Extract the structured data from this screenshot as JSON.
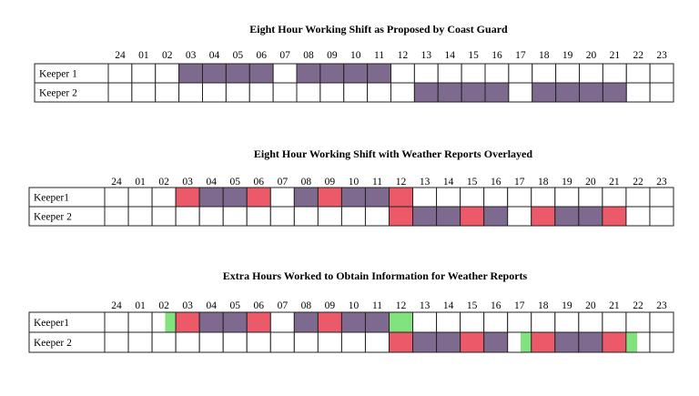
{
  "chart_data": [
    {
      "type": "table",
      "title": "Eight Hour Working Shift as Proposed by Coast Guard",
      "hours": [
        "24",
        "01",
        "02",
        "03",
        "04",
        "05",
        "06",
        "07",
        "08",
        "09",
        "10",
        "11",
        "12",
        "13",
        "14",
        "15",
        "16",
        "17",
        "18",
        "19",
        "20",
        "21",
        "22",
        "23"
      ],
      "rows": [
        {
          "label": "Keeper 1",
          "cells": [
            "",
            "",
            "",
            "shift",
            "shift",
            "shift",
            "shift",
            "",
            "shift",
            "shift",
            "shift",
            "shift",
            "",
            "",
            "",
            "",
            "",
            "",
            "",
            "",
            "",
            "",
            "",
            ""
          ]
        },
        {
          "label": "Keeper 2",
          "cells": [
            "",
            "",
            "",
            "",
            "",
            "",
            "",
            "",
            "",
            "",
            "",
            "",
            "",
            "shift",
            "shift",
            "shift",
            "shift",
            "",
            "shift",
            "shift",
            "shift",
            "shift",
            "",
            ""
          ]
        }
      ]
    },
    {
      "type": "table",
      "title": "Eight Hour Working Shift with Weather Reports Overlayed",
      "hours": [
        "24",
        "01",
        "02",
        "03",
        "04",
        "05",
        "06",
        "07",
        "08",
        "09",
        "10",
        "11",
        "12",
        "13",
        "14",
        "15",
        "16",
        "17",
        "18",
        "19",
        "20",
        "21",
        "22",
        "23"
      ],
      "rows": [
        {
          "label": "Keeper1",
          "cells": [
            "",
            "",
            "",
            "report",
            "shift",
            "shift",
            "report",
            "",
            "shift",
            "report",
            "shift",
            "shift",
            "report",
            "",
            "",
            "",
            "",
            "",
            "",
            "",
            "",
            "",
            "",
            ""
          ]
        },
        {
          "label": "Keeper 2",
          "cells": [
            "",
            "",
            "",
            "",
            "",
            "",
            "",
            "",
            "",
            "",
            "",
            "",
            "report",
            "shift",
            "shift",
            "report",
            "shift",
            "",
            "report",
            "shift",
            "shift",
            "report",
            "",
            ""
          ]
        }
      ]
    },
    {
      "type": "table",
      "title": "Extra Hours Worked to Obtain Information for Weather Reports",
      "hours": [
        "24",
        "01",
        "02",
        "03",
        "04",
        "05",
        "06",
        "07",
        "08",
        "09",
        "10",
        "11",
        "12",
        "13",
        "14",
        "15",
        "16",
        "17",
        "18",
        "19",
        "20",
        "21",
        "22",
        "23"
      ],
      "rows": [
        {
          "label": "Keeper1",
          "cells": [
            "",
            "",
            "extra_end",
            "report",
            "shift",
            "shift",
            "report",
            "",
            "shift",
            "report",
            "shift",
            "shift",
            "extra",
            "",
            "",
            "",
            "",
            "",
            "",
            "",
            "",
            "",
            "",
            ""
          ]
        },
        {
          "label": "Keeper 2",
          "cells": [
            "",
            "",
            "",
            "",
            "",
            "",
            "",
            "",
            "",
            "",
            "",
            "",
            "report",
            "shift",
            "shift",
            "report",
            "shift",
            "extra_end",
            "report",
            "shift",
            "shift",
            "report",
            "extra_start",
            ""
          ]
        }
      ]
    }
  ],
  "legend_colors": {
    "shift": "#7e6a8e",
    "report": "#ec5a6a",
    "extra": "#82e27e"
  }
}
